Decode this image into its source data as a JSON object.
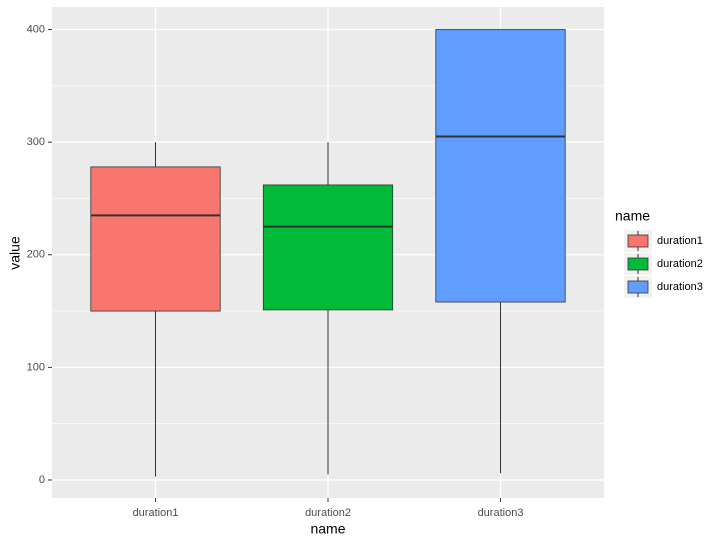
{
  "chart_data": {
    "type": "box",
    "x_label": "name",
    "y_label": "value",
    "categories": [
      "duration1",
      "duration2",
      "duration3"
    ],
    "legend_title": "name",
    "series": [
      {
        "name": "duration1",
        "color": "#F8766D",
        "min": 3,
        "q1": 150,
        "median": 235,
        "q3": 278,
        "max": 300
      },
      {
        "name": "duration2",
        "color": "#00BA38",
        "min": 5,
        "q1": 151,
        "median": 225,
        "q3": 262,
        "max": 300
      },
      {
        "name": "duration3",
        "color": "#619CFF",
        "min": 6,
        "q1": 158,
        "median": 305,
        "q3": 400,
        "max": 400
      }
    ],
    "ylim": [
      -16,
      420
    ],
    "yticks": [
      0,
      100,
      200,
      300,
      400
    ],
    "grid": true
  }
}
